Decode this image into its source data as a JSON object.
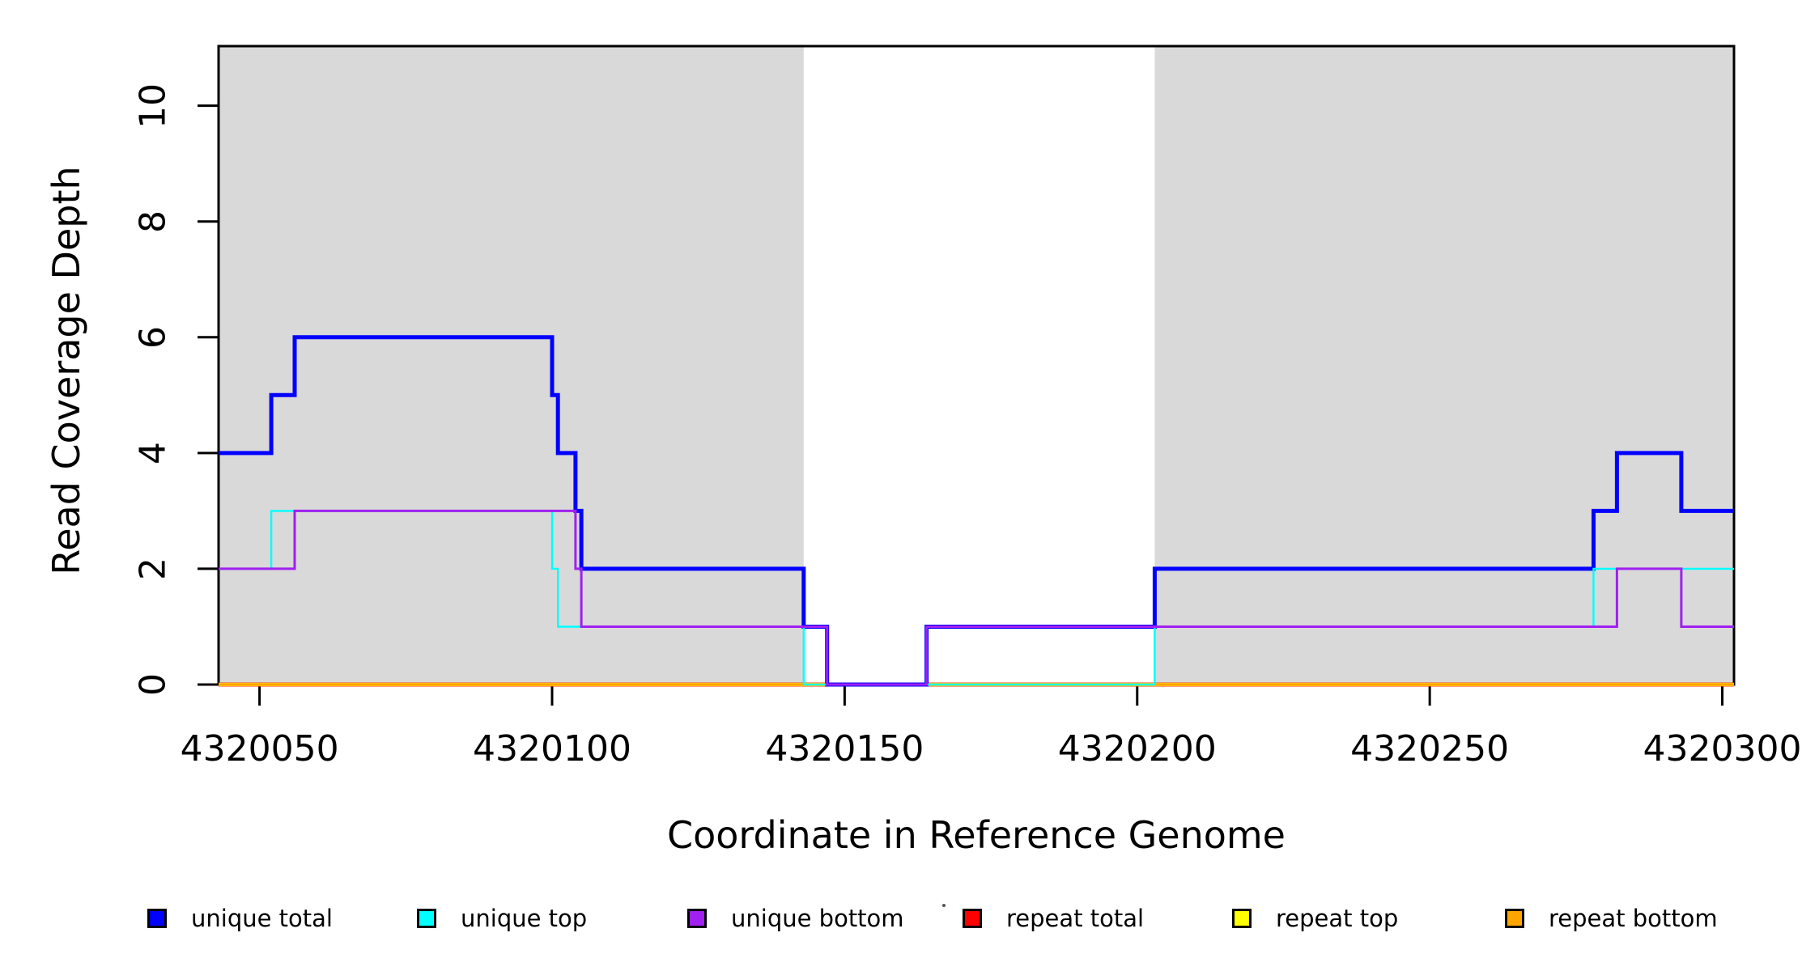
{
  "figure": {
    "x_axis_title": "Coordinate in Reference Genome",
    "y_axis_title": "Read Coverage Depth"
  },
  "legend": {
    "items": [
      {
        "label": "unique total",
        "color": "#0000FF"
      },
      {
        "label": "unique top",
        "color": "#00FFFF"
      },
      {
        "label": "unique bottom",
        "color": "#A020F0"
      },
      {
        "label": "repeat total",
        "color": "#FF0000"
      },
      {
        "label": "repeat top",
        "color": "#FFFF00"
      },
      {
        "label": "repeat bottom",
        "color": "#FFA500"
      }
    ]
  },
  "chart_data": {
    "type": "line",
    "title": "",
    "xlabel": "Coordinate in Reference Genome",
    "ylabel": "Read Coverage Depth",
    "xlim": [
      4320043,
      4320302
    ],
    "ylim": [
      0,
      11.03
    ],
    "x_end": 4320302,
    "grid": false,
    "legend_position": "bottom",
    "x_ticks": {
      "values": [
        4320050,
        4320100,
        4320150,
        4320200,
        4320250,
        4320300
      ],
      "labels": [
        "4320050",
        "4320100",
        "4320150",
        "4320200",
        "4320250",
        "4320300"
      ]
    },
    "y_ticks": {
      "values": [
        0,
        2,
        4,
        6,
        8,
        10
      ],
      "labels": [
        "0",
        "2",
        "4",
        "6",
        "8",
        "10"
      ]
    },
    "shaded_regions": {
      "color": "#D9D9D9",
      "ranges": [
        [
          4320043,
          4320143
        ],
        [
          4320203,
          4320302
        ]
      ]
    },
    "series": [
      {
        "name": "repeat total",
        "color": "#FF0000",
        "lwd": 5,
        "steps": [
          [
            4320043,
            0
          ]
        ]
      },
      {
        "name": "repeat top",
        "color": "#FFFF00",
        "lwd": 4.2,
        "steps": [
          [
            4320043,
            0
          ]
        ]
      },
      {
        "name": "repeat bottom",
        "color": "#FFA500",
        "lwd": 3.6,
        "steps": [
          [
            4320043,
            0
          ]
        ]
      },
      {
        "name": "unique total",
        "color": "#0000FF",
        "lwd": 5,
        "steps": [
          [
            4320043,
            4
          ],
          [
            4320052,
            5
          ],
          [
            4320056,
            6
          ],
          [
            4320100,
            5
          ],
          [
            4320101,
            4
          ],
          [
            4320104,
            3
          ],
          [
            4320105,
            2
          ],
          [
            4320143,
            1
          ],
          [
            4320147,
            0
          ],
          [
            4320164,
            1
          ],
          [
            4320203,
            2
          ],
          [
            4320278,
            3
          ],
          [
            4320282,
            4
          ],
          [
            4320293,
            3
          ]
        ]
      },
      {
        "name": "unique top",
        "color": "#00FFFF",
        "lwd": 2.4,
        "steps": [
          [
            4320043,
            2
          ],
          [
            4320052,
            3
          ],
          [
            4320100,
            2
          ],
          [
            4320101,
            1
          ],
          [
            4320143,
            0
          ],
          [
            4320203,
            1
          ],
          [
            4320278,
            2
          ]
        ]
      },
      {
        "name": "unique bottom",
        "color": "#A020F0",
        "lwd": 3,
        "steps": [
          [
            4320043,
            2
          ],
          [
            4320056,
            3
          ],
          [
            4320104,
            2
          ],
          [
            4320105,
            1
          ],
          [
            4320147,
            0
          ],
          [
            4320164,
            1
          ],
          [
            4320282,
            2
          ],
          [
            4320293,
            1
          ]
        ]
      }
    ]
  }
}
